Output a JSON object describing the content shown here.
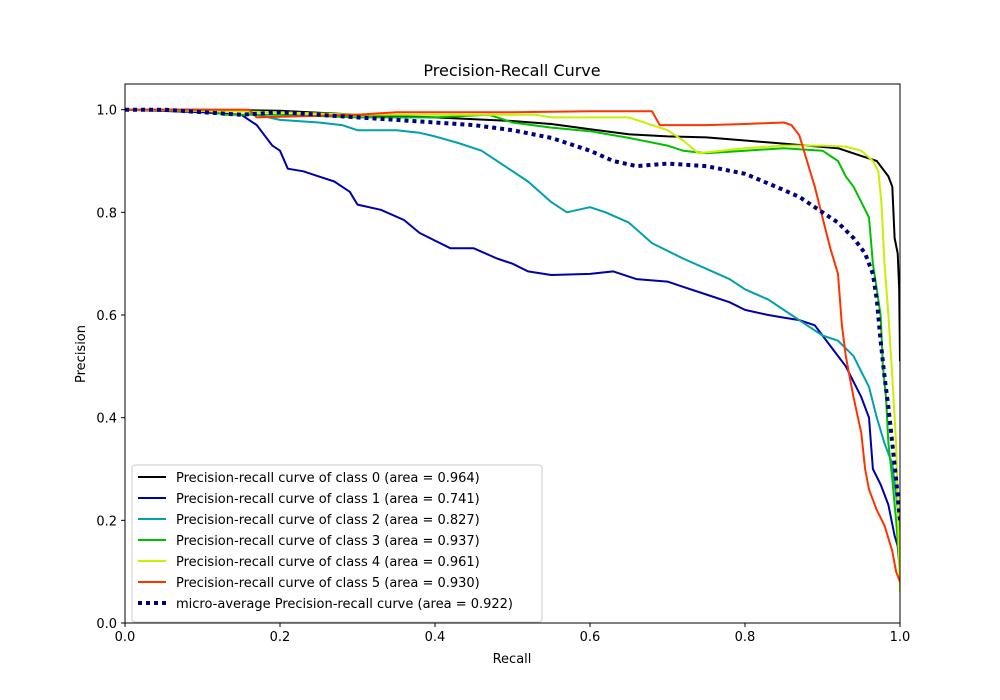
{
  "chart_data": {
    "type": "line",
    "title": "Precision-Recall Curve",
    "xlabel": "Recall",
    "ylabel": "Precision",
    "xlim": [
      0.0,
      1.0
    ],
    "ylim": [
      0.0,
      1.05
    ],
    "grid": false,
    "legend_position": "lower-left",
    "x_ticks": [
      {
        "value": 0.0,
        "label": "0.0"
      },
      {
        "value": 0.2,
        "label": "0.2"
      },
      {
        "value": 0.4,
        "label": "0.4"
      },
      {
        "value": 0.6,
        "label": "0.6"
      },
      {
        "value": 0.8,
        "label": "0.8"
      },
      {
        "value": 1.0,
        "label": "1.0"
      }
    ],
    "y_ticks": [
      {
        "value": 0.0,
        "label": "0.0"
      },
      {
        "value": 0.2,
        "label": "0.2"
      },
      {
        "value": 0.4,
        "label": "0.4"
      },
      {
        "value": 0.6,
        "label": "0.6"
      },
      {
        "value": 0.8,
        "label": "0.8"
      },
      {
        "value": 1.0,
        "label": "1.0"
      }
    ],
    "series": [
      {
        "name": "Precision-recall curve of class 0 (area = 0.964)",
        "color": "#000000",
        "style": "solid",
        "points": [
          [
            0,
            1.0
          ],
          [
            0.1,
            1.0
          ],
          [
            0.2,
            0.998
          ],
          [
            0.3,
            0.99
          ],
          [
            0.4,
            0.985
          ],
          [
            0.5,
            0.978
          ],
          [
            0.55,
            0.972
          ],
          [
            0.6,
            0.962
          ],
          [
            0.65,
            0.952
          ],
          [
            0.7,
            0.948
          ],
          [
            0.75,
            0.946
          ],
          [
            0.8,
            0.94
          ],
          [
            0.84,
            0.935
          ],
          [
            0.88,
            0.93
          ],
          [
            0.92,
            0.925
          ],
          [
            0.95,
            0.91
          ],
          [
            0.97,
            0.9
          ],
          [
            0.985,
            0.87
          ],
          [
            0.99,
            0.85
          ],
          [
            0.993,
            0.75
          ],
          [
            0.997,
            0.72
          ],
          [
            0.999,
            0.65
          ],
          [
            1.0,
            0.51
          ]
        ]
      },
      {
        "name": "Precision-recall curve of class 1 (area = 0.741)",
        "color": "#0000aa",
        "style": "solid",
        "points": [
          [
            0,
            1.0
          ],
          [
            0.1,
            0.995
          ],
          [
            0.15,
            0.99
          ],
          [
            0.17,
            0.97
          ],
          [
            0.18,
            0.95
          ],
          [
            0.19,
            0.93
          ],
          [
            0.2,
            0.92
          ],
          [
            0.21,
            0.885
          ],
          [
            0.23,
            0.88
          ],
          [
            0.25,
            0.87
          ],
          [
            0.27,
            0.86
          ],
          [
            0.29,
            0.84
          ],
          [
            0.3,
            0.815
          ],
          [
            0.33,
            0.805
          ],
          [
            0.36,
            0.785
          ],
          [
            0.38,
            0.76
          ],
          [
            0.4,
            0.745
          ],
          [
            0.42,
            0.73
          ],
          [
            0.45,
            0.73
          ],
          [
            0.48,
            0.71
          ],
          [
            0.5,
            0.7
          ],
          [
            0.52,
            0.685
          ],
          [
            0.55,
            0.678
          ],
          [
            0.6,
            0.68
          ],
          [
            0.63,
            0.685
          ],
          [
            0.66,
            0.67
          ],
          [
            0.7,
            0.665
          ],
          [
            0.72,
            0.655
          ],
          [
            0.75,
            0.64
          ],
          [
            0.78,
            0.625
          ],
          [
            0.8,
            0.61
          ],
          [
            0.83,
            0.6
          ],
          [
            0.85,
            0.595
          ],
          [
            0.87,
            0.59
          ],
          [
            0.89,
            0.58
          ],
          [
            0.9,
            0.56
          ],
          [
            0.915,
            0.53
          ],
          [
            0.93,
            0.5
          ],
          [
            0.94,
            0.47
          ],
          [
            0.95,
            0.44
          ],
          [
            0.96,
            0.4
          ],
          [
            0.965,
            0.3
          ],
          [
            0.975,
            0.27
          ],
          [
            0.985,
            0.23
          ],
          [
            0.993,
            0.17
          ],
          [
            0.997,
            0.15
          ],
          [
            1.0,
            0.1
          ]
        ]
      },
      {
        "name": "Precision-recall curve of class 2 (area = 0.827)",
        "color": "#00a0b0",
        "style": "solid",
        "points": [
          [
            0,
            1.0
          ],
          [
            0.1,
            1.0
          ],
          [
            0.15,
            1.0
          ],
          [
            0.17,
            0.99
          ],
          [
            0.2,
            0.98
          ],
          [
            0.25,
            0.975
          ],
          [
            0.28,
            0.97
          ],
          [
            0.3,
            0.96
          ],
          [
            0.35,
            0.96
          ],
          [
            0.38,
            0.955
          ],
          [
            0.4,
            0.948
          ],
          [
            0.43,
            0.935
          ],
          [
            0.46,
            0.92
          ],
          [
            0.49,
            0.89
          ],
          [
            0.52,
            0.86
          ],
          [
            0.55,
            0.82
          ],
          [
            0.57,
            0.8
          ],
          [
            0.6,
            0.81
          ],
          [
            0.62,
            0.8
          ],
          [
            0.65,
            0.78
          ],
          [
            0.68,
            0.74
          ],
          [
            0.72,
            0.71
          ],
          [
            0.75,
            0.69
          ],
          [
            0.78,
            0.67
          ],
          [
            0.8,
            0.65
          ],
          [
            0.83,
            0.63
          ],
          [
            0.86,
            0.6
          ],
          [
            0.88,
            0.58
          ],
          [
            0.9,
            0.56
          ],
          [
            0.92,
            0.55
          ],
          [
            0.94,
            0.52
          ],
          [
            0.96,
            0.46
          ],
          [
            0.97,
            0.4
          ],
          [
            0.98,
            0.35
          ],
          [
            0.99,
            0.31
          ],
          [
            0.995,
            0.25
          ],
          [
            1.0,
            0.18
          ]
        ]
      },
      {
        "name": "Precision-recall curve of class 3 (area = 0.937)",
        "color": "#00c000",
        "style": "solid",
        "points": [
          [
            0,
            1.0
          ],
          [
            0.1,
            1.0
          ],
          [
            0.13,
            0.99
          ],
          [
            0.2,
            0.99
          ],
          [
            0.3,
            0.985
          ],
          [
            0.4,
            0.985
          ],
          [
            0.47,
            0.99
          ],
          [
            0.5,
            0.975
          ],
          [
            0.55,
            0.965
          ],
          [
            0.6,
            0.958
          ],
          [
            0.65,
            0.945
          ],
          [
            0.7,
            0.93
          ],
          [
            0.72,
            0.92
          ],
          [
            0.75,
            0.915
          ],
          [
            0.8,
            0.92
          ],
          [
            0.85,
            0.925
          ],
          [
            0.88,
            0.922
          ],
          [
            0.9,
            0.92
          ],
          [
            0.92,
            0.9
          ],
          [
            0.93,
            0.87
          ],
          [
            0.94,
            0.85
          ],
          [
            0.95,
            0.82
          ],
          [
            0.96,
            0.79
          ],
          [
            0.965,
            0.7
          ],
          [
            0.972,
            0.63
          ],
          [
            0.975,
            0.6
          ],
          [
            0.978,
            0.5
          ],
          [
            0.982,
            0.44
          ],
          [
            0.985,
            0.35
          ],
          [
            0.99,
            0.28
          ],
          [
            0.995,
            0.2
          ],
          [
            1.0,
            0.1
          ]
        ]
      },
      {
        "name": "Precision-recall curve of class 4 (area = 0.961)",
        "color": "#c8f000",
        "style": "solid",
        "points": [
          [
            0,
            1.0
          ],
          [
            0.2,
            0.995
          ],
          [
            0.3,
            0.99
          ],
          [
            0.4,
            0.99
          ],
          [
            0.45,
            0.99
          ],
          [
            0.5,
            0.99
          ],
          [
            0.53,
            0.99
          ],
          [
            0.55,
            0.985
          ],
          [
            0.6,
            0.985
          ],
          [
            0.65,
            0.985
          ],
          [
            0.7,
            0.96
          ],
          [
            0.72,
            0.94
          ],
          [
            0.74,
            0.915
          ],
          [
            0.8,
            0.925
          ],
          [
            0.85,
            0.93
          ],
          [
            0.9,
            0.93
          ],
          [
            0.93,
            0.928
          ],
          [
            0.95,
            0.92
          ],
          [
            0.965,
            0.9
          ],
          [
            0.972,
            0.88
          ],
          [
            0.976,
            0.82
          ],
          [
            0.98,
            0.7
          ],
          [
            0.985,
            0.6
          ],
          [
            0.99,
            0.48
          ],
          [
            0.995,
            0.35
          ],
          [
            1.0,
            0.06
          ]
        ]
      },
      {
        "name": "Precision-recall curve of class 5 (area = 0.930)",
        "color": "#ff3300",
        "style": "solid",
        "points": [
          [
            0,
            1.0
          ],
          [
            0.16,
            1.0
          ],
          [
            0.17,
            0.985
          ],
          [
            0.3,
            0.99
          ],
          [
            0.35,
            0.995
          ],
          [
            0.5,
            0.995
          ],
          [
            0.6,
            0.997
          ],
          [
            0.68,
            0.997
          ],
          [
            0.69,
            0.97
          ],
          [
            0.75,
            0.97
          ],
          [
            0.8,
            0.972
          ],
          [
            0.85,
            0.975
          ],
          [
            0.86,
            0.97
          ],
          [
            0.87,
            0.95
          ],
          [
            0.88,
            0.9
          ],
          [
            0.89,
            0.85
          ],
          [
            0.9,
            0.79
          ],
          [
            0.91,
            0.73
          ],
          [
            0.92,
            0.68
          ],
          [
            0.925,
            0.58
          ],
          [
            0.93,
            0.52
          ],
          [
            0.935,
            0.48
          ],
          [
            0.94,
            0.44
          ],
          [
            0.95,
            0.37
          ],
          [
            0.955,
            0.3
          ],
          [
            0.96,
            0.26
          ],
          [
            0.97,
            0.22
          ],
          [
            0.98,
            0.19
          ],
          [
            0.99,
            0.14
          ],
          [
            0.995,
            0.1
          ],
          [
            1.0,
            0.08
          ]
        ]
      },
      {
        "name": "micro-average Precision-recall curve (area = 0.922)",
        "color": "#000080",
        "style": "dotted",
        "points": [
          [
            0,
            1.0
          ],
          [
            0.05,
            1.0
          ],
          [
            0.1,
            0.995
          ],
          [
            0.15,
            0.99
          ],
          [
            0.2,
            0.995
          ],
          [
            0.25,
            0.99
          ],
          [
            0.3,
            0.985
          ],
          [
            0.35,
            0.98
          ],
          [
            0.4,
            0.975
          ],
          [
            0.45,
            0.97
          ],
          [
            0.5,
            0.96
          ],
          [
            0.55,
            0.945
          ],
          [
            0.6,
            0.92
          ],
          [
            0.63,
            0.9
          ],
          [
            0.66,
            0.89
          ],
          [
            0.7,
            0.895
          ],
          [
            0.75,
            0.89
          ],
          [
            0.8,
            0.875
          ],
          [
            0.84,
            0.85
          ],
          [
            0.87,
            0.83
          ],
          [
            0.9,
            0.8
          ],
          [
            0.92,
            0.78
          ],
          [
            0.94,
            0.75
          ],
          [
            0.955,
            0.72
          ],
          [
            0.965,
            0.68
          ],
          [
            0.97,
            0.63
          ],
          [
            0.975,
            0.55
          ],
          [
            0.98,
            0.48
          ],
          [
            0.985,
            0.42
          ],
          [
            0.99,
            0.35
          ],
          [
            0.995,
            0.28
          ],
          [
            1.0,
            0.2
          ]
        ]
      }
    ]
  }
}
